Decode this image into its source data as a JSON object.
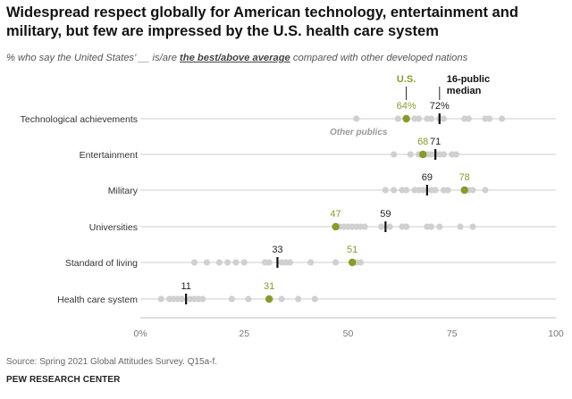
{
  "header": {
    "title": "Widespread respect globally for American technology, entertainment and military, but few are impressed by the U.S. health care system",
    "subtitle_before": "% who say the United States’ __ is/are ",
    "subtitle_highlight": "the best/above average",
    "subtitle_after": " compared with other developed nations"
  },
  "footer": {
    "source": "Spring 2021 Global Attitudes Survey. Q15a-f.",
    "source_label": "Source:",
    "brand": "PEW RESEARCH CENTER"
  },
  "colors": {
    "us": "#8a9a2a",
    "us_label": "#8a9a2a",
    "other": "#d0d0d0",
    "median": "#111111",
    "line": "#cccccc",
    "annotation": "#999999"
  },
  "chart_data": {
    "type": "scatter",
    "x_domain": [
      0,
      100
    ],
    "x_ticks": [
      "0%",
      "25",
      "50",
      "75",
      "100"
    ],
    "x_tick_values": [
      0,
      25,
      50,
      75,
      100
    ],
    "legend": {
      "us_label": "U.S.",
      "median_label": "16-public median",
      "other_label": "Other publics"
    },
    "series": [
      {
        "category": "Technological achievements",
        "us": 64,
        "us_label": "64%",
        "median": 72,
        "median_label": "72%",
        "others": [
          52,
          62,
          64,
          66,
          67,
          69,
          70,
          72,
          73,
          78,
          79,
          83,
          84,
          87
        ]
      },
      {
        "category": "Entertainment",
        "us": 68,
        "us_label": "68",
        "median": 71,
        "median_label": "71",
        "others": [
          61,
          65,
          67,
          69,
          70,
          71,
          72,
          73,
          75,
          76
        ]
      },
      {
        "category": "Military",
        "us": 78,
        "us_label": "78",
        "median": 69,
        "median_label": "69",
        "others": [
          59,
          61,
          63,
          64,
          66,
          67,
          68,
          70,
          71,
          73,
          74,
          79,
          80,
          83
        ]
      },
      {
        "category": "Universities",
        "us": 47,
        "us_label": "47",
        "median": 59,
        "median_label": "59",
        "others": [
          48,
          49,
          50,
          51,
          52,
          53,
          54,
          58,
          60,
          63,
          64,
          69,
          70,
          72,
          77,
          80
        ]
      },
      {
        "category": "Standard of living",
        "us": 51,
        "us_label": "51",
        "median": 33,
        "median_label": "33",
        "others": [
          13,
          16,
          19,
          21,
          23,
          25,
          30,
          31,
          34,
          35,
          36,
          41,
          47,
          52,
          53
        ]
      },
      {
        "category": "Health care system",
        "us": 31,
        "us_label": "31",
        "median": 11,
        "median_label": "11",
        "others": [
          5,
          7,
          8,
          9,
          10,
          12,
          13,
          14,
          15,
          22,
          26,
          34,
          38,
          42
        ]
      }
    ]
  }
}
